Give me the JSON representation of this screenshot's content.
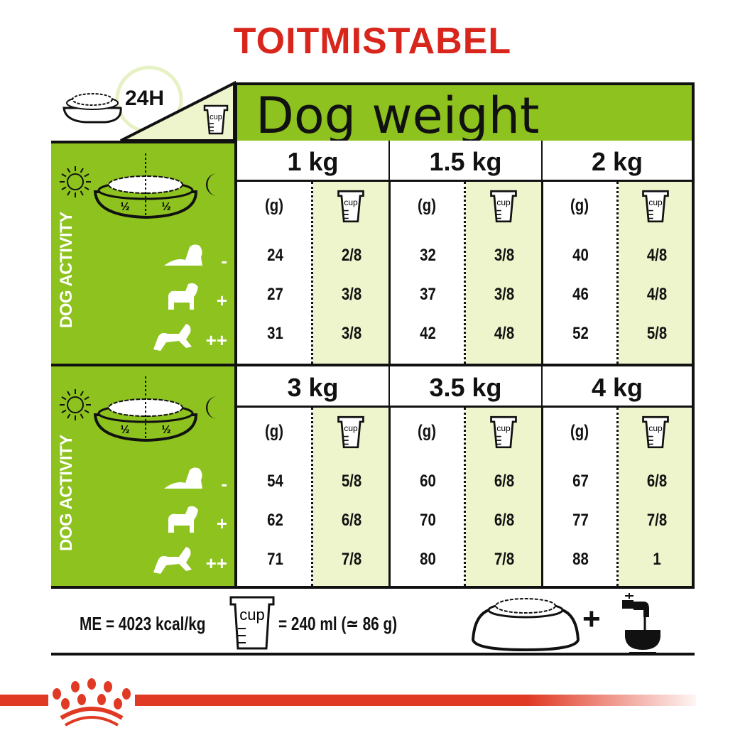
{
  "title": "TOITMISTABEL",
  "header": {
    "label_24h": "24H",
    "title": "Dog weight",
    "cup_label": "cup"
  },
  "panel": {
    "activity_label": "DOG ACTIVITY",
    "half_left": "½",
    "half_right": "½",
    "levels": [
      "-",
      "+",
      "++"
    ]
  },
  "table": {
    "gram_header": "(g)",
    "cup_header": "cup",
    "blocks": [
      {
        "weights": [
          {
            "weight": "1 kg",
            "grams": [
              "24",
              "27",
              "31"
            ],
            "cups": [
              "2/8",
              "3/8",
              "3/8"
            ]
          },
          {
            "weight": "1.5 kg",
            "grams": [
              "32",
              "37",
              "42"
            ],
            "cups": [
              "3/8",
              "3/8",
              "4/8"
            ]
          },
          {
            "weight": "2 kg",
            "grams": [
              "40",
              "46",
              "52"
            ],
            "cups": [
              "4/8",
              "4/8",
              "5/8"
            ]
          }
        ]
      },
      {
        "weights": [
          {
            "weight": "3 kg",
            "grams": [
              "54",
              "62",
              "71"
            ],
            "cups": [
              "5/8",
              "6/8",
              "7/8"
            ]
          },
          {
            "weight": "3.5 kg",
            "grams": [
              "60",
              "70",
              "80"
            ],
            "cups": [
              "6/8",
              "6/8",
              "7/8"
            ]
          },
          {
            "weight": "4 kg",
            "grams": [
              "67",
              "77",
              "88"
            ],
            "cups": [
              "6/8",
              "7/8",
              "1"
            ]
          }
        ]
      }
    ]
  },
  "footer": {
    "energy": "ME = 4023 kcal/kg",
    "cup_label": "cup",
    "cup_equiv": "= 240 ml (≃ 86 g)",
    "plus": "+"
  },
  "colors": {
    "green": "#8dc21f",
    "light_green": "#eef5cc",
    "red": "#d9261c"
  },
  "icons": [
    "food-bowl-icon",
    "clock-icon",
    "measuring-cup-icon",
    "sun-icon",
    "moon-icon",
    "dog-lying-icon",
    "dog-standing-icon",
    "dog-running-icon",
    "water-tap-icon",
    "royal-canin-crown-logo"
  ]
}
